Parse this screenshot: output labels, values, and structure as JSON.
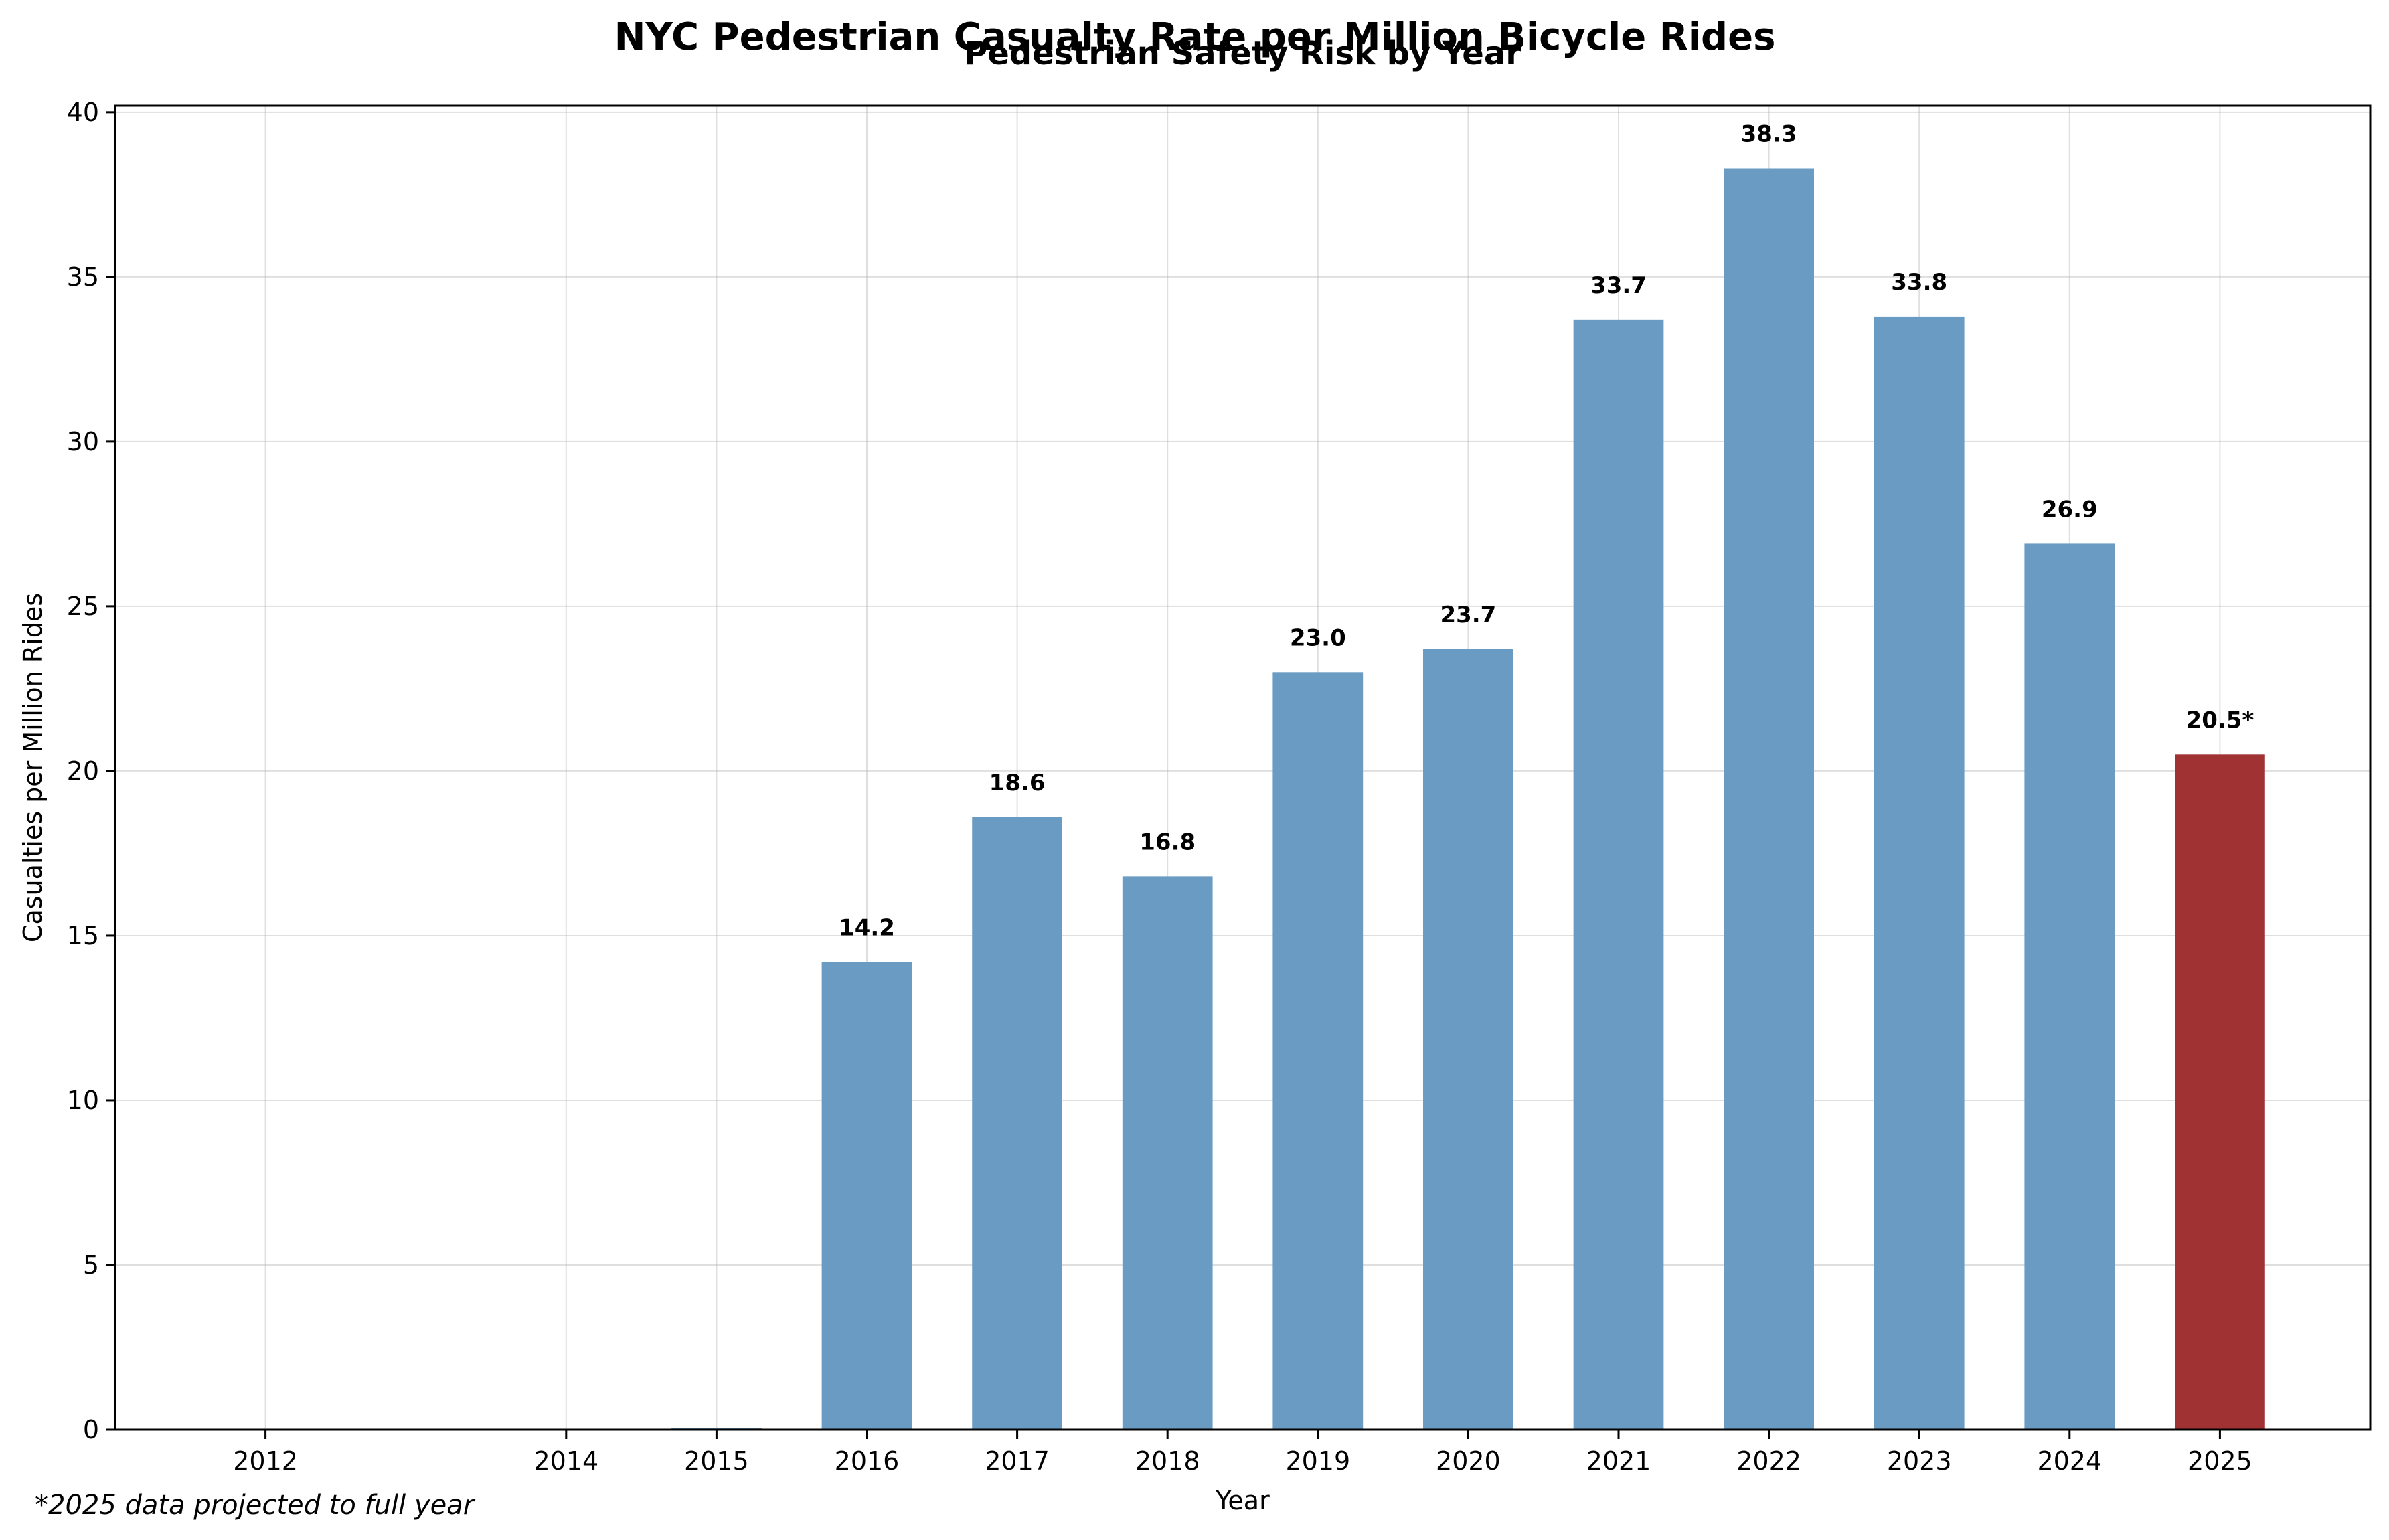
{
  "chart_data": {
    "type": "bar",
    "title": "NYC Pedestrian Casualty Rate per Million Bicycle Rides",
    "subtitle": "Pedestrian Safety Risk by Year",
    "xlabel": "Year",
    "ylabel": "Casualties per Million Rides",
    "x_ticks": [
      "2012",
      "2014",
      "2015",
      "2016",
      "2017",
      "2018",
      "2019",
      "2020",
      "2021",
      "2022",
      "2023",
      "2024",
      "2025"
    ],
    "categories": [
      2012,
      2014,
      2015,
      2016,
      2017,
      2018,
      2019,
      2020,
      2021,
      2022,
      2023,
      2024,
      2025
    ],
    "values": [
      0.0,
      0.0,
      0.05,
      14.2,
      18.6,
      16.8,
      23.0,
      23.7,
      33.7,
      38.3,
      33.8,
      26.9,
      20.5
    ],
    "data_labels": [
      "",
      "",
      "",
      "14.2",
      "18.6",
      "16.8",
      "23.0",
      "23.7",
      "33.7",
      "38.3",
      "33.8",
      "26.9",
      "20.5*"
    ],
    "bar_colors": [
      "#6a9bc3",
      "#6a9bc3",
      "#6a9bc3",
      "#6a9bc3",
      "#6a9bc3",
      "#6a9bc3",
      "#6a9bc3",
      "#6a9bc3",
      "#6a9bc3",
      "#6a9bc3",
      "#6a9bc3",
      "#6a9bc3",
      "#a03234"
    ],
    "y_ticks": [
      0,
      5,
      10,
      15,
      20,
      25,
      30,
      35,
      40
    ],
    "xlim": [
      2011,
      2026
    ],
    "ylim": [
      0,
      40.2
    ],
    "grid": true,
    "footnote": "*2025 data projected to full year"
  }
}
